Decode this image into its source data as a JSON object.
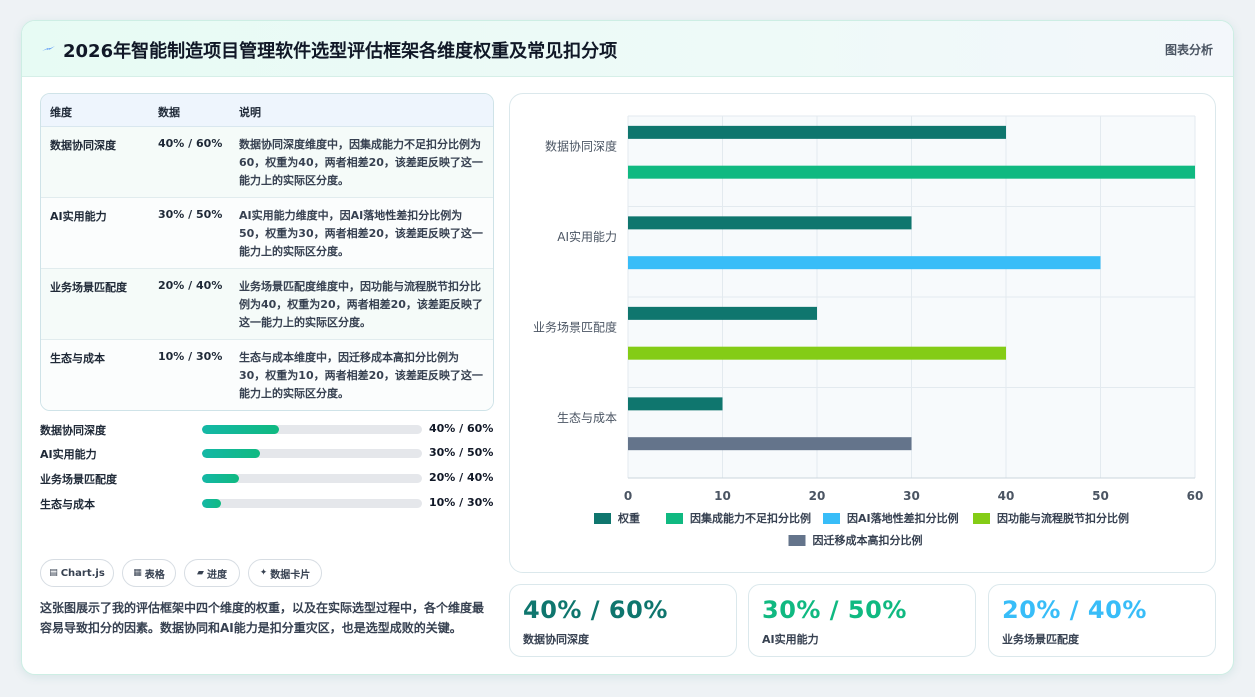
{
  "header": {
    "title": "2026年智能制造项目管理软件选型评估框架各维度权重及常见扣分项",
    "link": "图表分析",
    "icon": "lightning-icon"
  },
  "colors": {
    "weight": "#0f766e",
    "accent": "#10b981",
    "blue": "#38bdf8",
    "lime": "#84cc16",
    "slate": "#64748b"
  },
  "table": {
    "headers": [
      "维度",
      "数据",
      "说明"
    ],
    "rows": [
      {
        "dim": "数据协同深度",
        "val": "40% / 60%",
        "desc": "数据协同深度维度中，因集成能力不足扣分比例为60，权重为40，两者相差20，该差距反映了这一能力上的实际区分度。"
      },
      {
        "dim": "AI实用能力",
        "val": "30% / 50%",
        "desc": "AI实用能力维度中，因AI落地性差扣分比例为50，权重为30，两者相差20，该差距反映了这一能力上的实际区分度。"
      },
      {
        "dim": "业务场景匹配度",
        "val": "20% / 40%",
        "desc": "业务场景匹配度维度中，因功能与流程脱节扣分比例为40，权重为20，两者相差20，该差距反映了这一能力上的实际区分度。"
      },
      {
        "dim": "生态与成本",
        "val": "10% / 30%",
        "desc": "生态与成本维度中，因迁移成本高扣分比例为30，权重为10，两者相差20，该差距反映了这一能力上的实际区分度。"
      }
    ]
  },
  "progress": [
    {
      "label": "数据协同深度",
      "value": "40% / 60%",
      "fill": 0.35
    },
    {
      "label": "AI实用能力",
      "value": "30% / 50%",
      "fill": 0.265
    },
    {
      "label": "业务场景匹配度",
      "value": "20% / 40%",
      "fill": 0.17
    },
    {
      "label": "生态与成本",
      "value": "10% / 30%",
      "fill": 0.085
    }
  ],
  "tags": [
    {
      "icon": "chart-icon",
      "glyph": "▤",
      "label": "Chart.js"
    },
    {
      "icon": "table-icon",
      "glyph": "▦",
      "label": "表格"
    },
    {
      "icon": "progress-icon",
      "glyph": "▰",
      "label": "进度"
    },
    {
      "icon": "sparkle-icon",
      "glyph": "✦",
      "label": "数据卡片"
    }
  ],
  "description": "这张图展示了我的评估框架中四个维度的权重，以及在实际选型过程中，各个维度最容易导致扣分的因素。数据协同和AI能力是扣分重灾区，也是选型成败的关键。",
  "kpis": [
    {
      "value": "40% / 60%",
      "label": "数据协同深度",
      "color": "#0f766e"
    },
    {
      "value": "30% / 50%",
      "label": "AI实用能力",
      "color": "#10b981"
    },
    {
      "value": "20% / 40%",
      "label": "业务场景匹配度",
      "color": "#38bdf8"
    }
  ],
  "chart_data": {
    "type": "bar",
    "orientation": "horizontal",
    "categories": [
      "数据协同深度",
      "AI实用能力",
      "业务场景匹配度",
      "生态与成本"
    ],
    "series": [
      {
        "name": "权重",
        "color": "#0f766e",
        "values": [
          40,
          30,
          20,
          10
        ]
      },
      {
        "name": "因集成能力不足扣分比例",
        "color": "#10b981",
        "values": [
          60,
          null,
          null,
          null
        ]
      },
      {
        "name": "因AI落地性差扣分比例",
        "color": "#38bdf8",
        "values": [
          null,
          50,
          null,
          null
        ]
      },
      {
        "name": "因功能与流程脱节扣分比例",
        "color": "#84cc16",
        "values": [
          null,
          null,
          40,
          null
        ]
      },
      {
        "name": "因迁移成本高扣分比例",
        "color": "#64748b",
        "values": [
          null,
          null,
          null,
          30
        ]
      }
    ],
    "xlim": [
      0,
      60
    ],
    "xticks": [
      0,
      10,
      20,
      30,
      40,
      50,
      60
    ],
    "grid": true,
    "legend": "bottom"
  }
}
